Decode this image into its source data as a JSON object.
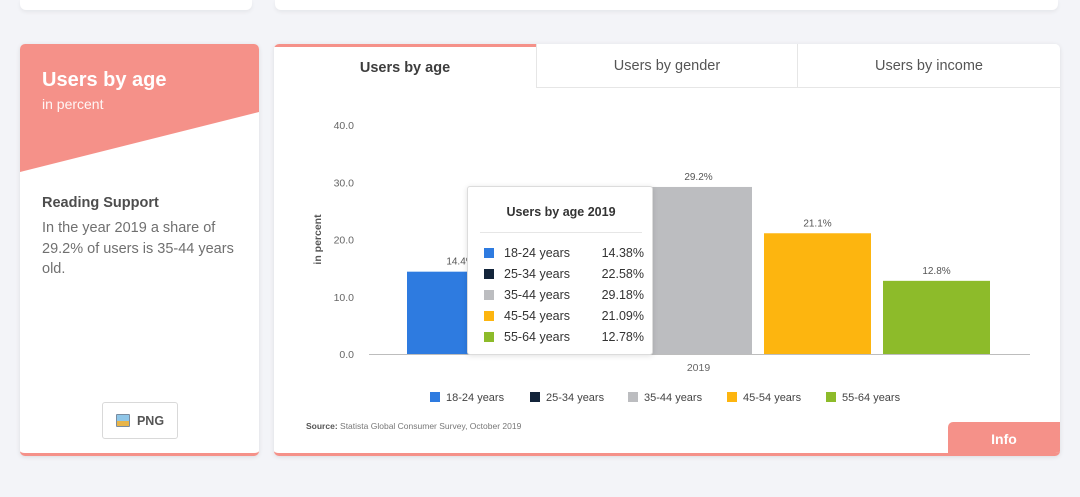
{
  "left": {
    "title": "Users by age",
    "subtitle": "in percent",
    "reading_title": "Reading Support",
    "reading_text": "In the year 2019 a share of 29.2% of users is 35-44 years old.",
    "png_label": "PNG"
  },
  "tabs": [
    "Users by age",
    "Users by gender",
    "Users by income"
  ],
  "tooltip": {
    "title": "Users by age 2019",
    "rows": [
      {
        "label": "18-24 years",
        "value": "14.38%"
      },
      {
        "label": "25-34 years",
        "value": "22.58%"
      },
      {
        "label": "35-44 years",
        "value": "29.18%"
      },
      {
        "label": "45-54 years",
        "value": "21.09%"
      },
      {
        "label": "55-64 years",
        "value": "12.78%"
      }
    ]
  },
  "source": {
    "prefix": "Source:",
    "text": "Statista Global Consumer Survey, October 2019"
  },
  "info_label": "Info",
  "colors": {
    "accent": "#f59189",
    "series": [
      "#2e7be0",
      "#13243a",
      "#bcbdc0",
      "#fdb50f",
      "#8dbb2a"
    ]
  },
  "chart_data": {
    "type": "bar",
    "categories": [
      "2019"
    ],
    "ylabel": "in percent",
    "ylim": [
      0,
      40
    ],
    "yticks": [
      "0.0",
      "10.0",
      "20.0",
      "30.0",
      "40.0"
    ],
    "grid": false,
    "legend_position": "bottom",
    "series": [
      {
        "name": "18-24 years",
        "values": [
          14.38
        ],
        "label": "14.4%"
      },
      {
        "name": "25-34 years",
        "values": [
          22.58
        ],
        "label": "22.6%"
      },
      {
        "name": "35-44 years",
        "values": [
          29.18
        ],
        "label": "29.2%"
      },
      {
        "name": "45-54 years",
        "values": [
          21.09
        ],
        "label": "21.1%"
      },
      {
        "name": "55-64 years",
        "values": [
          12.78
        ],
        "label": "12.8%"
      }
    ]
  }
}
